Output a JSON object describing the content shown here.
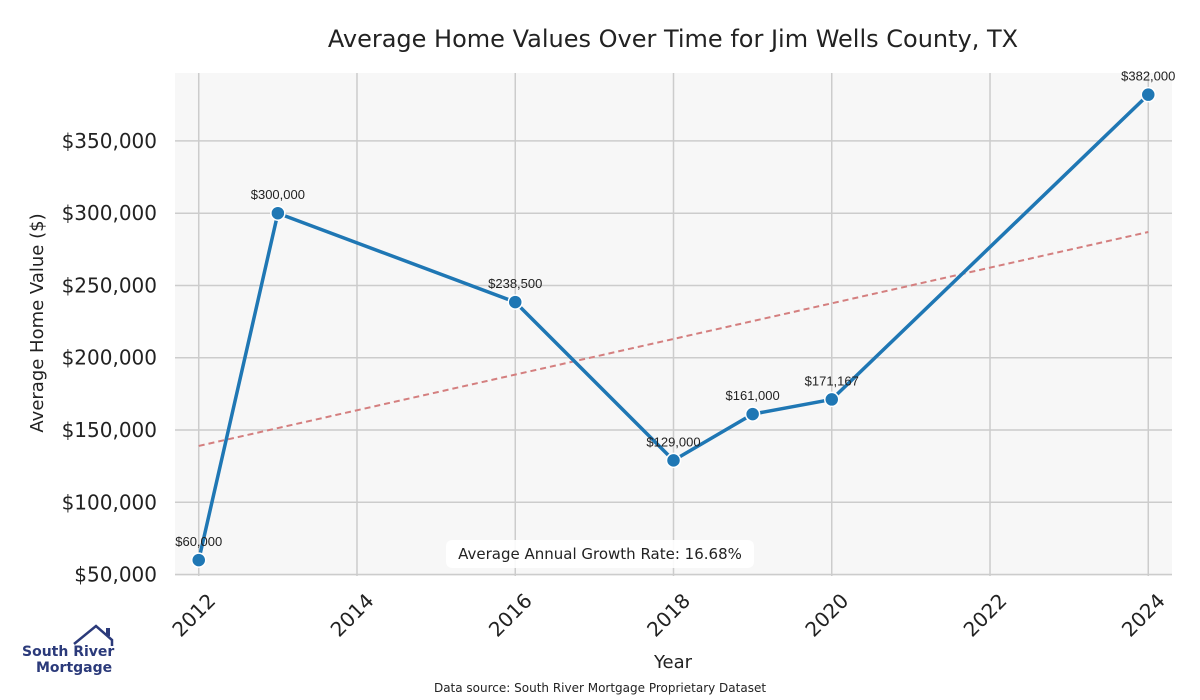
{
  "chart_data": {
    "type": "line",
    "title": "Average Home Values Over Time for Jim Wells County, TX",
    "xlabel": "Year",
    "ylabel": "Average Home Value ($)",
    "x": [
      2012,
      2013,
      2016,
      2018,
      2019,
      2020,
      2024
    ],
    "values": [
      60000,
      300000,
      238500,
      129000,
      161000,
      171167,
      382000
    ],
    "point_labels": [
      "$60,000",
      "$300,000",
      "$238,500",
      "$129,000",
      "$161,000",
      "$171,167",
      "$382,000"
    ],
    "xlim": [
      2011.7,
      2024.3
    ],
    "ylim": [
      49000,
      397000
    ],
    "x_ticks": [
      2012,
      2014,
      2016,
      2018,
      2020,
      2022,
      2024
    ],
    "y_ticks": [
      50000,
      100000,
      150000,
      200000,
      250000,
      300000,
      350000
    ],
    "y_tick_labels": [
      "$50,000",
      "$100,000",
      "$150,000",
      "$200,000",
      "$250,000",
      "$300,000",
      "$350,000"
    ],
    "trend_line": {
      "x": [
        2012,
        2024
      ],
      "y": [
        139000,
        287000
      ]
    },
    "annotation": "Average Annual Growth Rate: 16.68%",
    "grid": true,
    "colors": {
      "line": "#1f77b4",
      "trend": "#d47f7f",
      "grid": "#cccccc",
      "plot_bg": "#f7f7f7"
    }
  },
  "footer": {
    "source": "Data source: South River Mortgage Proprietary Dataset",
    "logo_line1": "South River",
    "logo_line2": "Mortgage"
  }
}
